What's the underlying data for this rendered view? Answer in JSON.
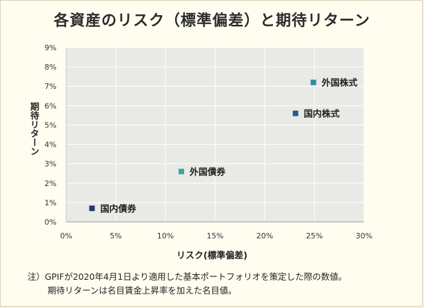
{
  "chart_data": {
    "type": "scatter",
    "title": "各資産のリスク（標準偏差）と期待リターン",
    "xlabel": "リスク(標準偏差)",
    "ylabel": "期待リターン",
    "xlim": [
      0,
      30
    ],
    "ylim": [
      0,
      9
    ],
    "x_ticks": [
      "0%",
      "5%",
      "10%",
      "15%",
      "20%",
      "25%",
      "30%"
    ],
    "y_ticks": [
      "0%",
      "1%",
      "2%",
      "3%",
      "4%",
      "5%",
      "6%",
      "7%",
      "8%",
      "9%"
    ],
    "grid": true,
    "points": [
      {
        "label": "国内債券",
        "x": 2.6,
        "y": 0.7,
        "color": "#1f3a68"
      },
      {
        "label": "外国債券",
        "x": 11.6,
        "y": 2.6,
        "color": "#3aa6a6"
      },
      {
        "label": "国内株式",
        "x": 23.1,
        "y": 5.6,
        "color": "#1f5d8f"
      },
      {
        "label": "外国株式",
        "x": 24.9,
        "y": 7.2,
        "color": "#2c8e9a"
      }
    ]
  },
  "note": {
    "line1": "注）GPIFが2020年4月1日より適用した基本ポートフォリオを策定した際の数値。",
    "line2": "期待リターンは名目賃金上昇率を加えた名目値。"
  }
}
